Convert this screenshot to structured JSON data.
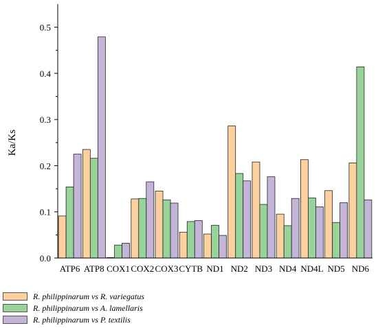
{
  "chart_data": {
    "type": "bar",
    "ylabel": "Ka/Ks",
    "xlabel": "",
    "ylim": [
      0,
      0.55
    ],
    "yticks": [
      "0.0",
      "0.1",
      "0.2",
      "0.3",
      "0.4",
      "0.5"
    ],
    "grid": false,
    "legend_position": "bottom-left",
    "categories": [
      "ATP6",
      "ATP8",
      "COX1",
      "COX2",
      "COX3",
      "CYTB",
      "ND1",
      "ND2",
      "ND3",
      "ND4",
      "ND4L",
      "ND5",
      "ND6"
    ],
    "series": [
      {
        "name": "R. philippinarum vs R. variegatus",
        "color": "#fdd09f",
        "values": [
          0.091,
          0.235,
          0.001,
          0.128,
          0.145,
          0.056,
          0.052,
          0.286,
          0.208,
          0.095,
          0.213,
          0.146,
          0.206
        ]
      },
      {
        "name": "R. philippinarum vs A. lamellaris",
        "color": "#98d49a",
        "values": [
          0.154,
          0.216,
          0.028,
          0.129,
          0.126,
          0.079,
          0.071,
          0.183,
          0.116,
          0.07,
          0.13,
          0.077,
          0.414
        ]
      },
      {
        "name": "R. philippinarum vs P. textilis",
        "color": "#c4b5d8",
        "values": [
          0.225,
          0.479,
          0.032,
          0.165,
          0.119,
          0.081,
          0.049,
          0.167,
          0.176,
          0.129,
          0.111,
          0.12,
          0.126
        ]
      }
    ]
  }
}
